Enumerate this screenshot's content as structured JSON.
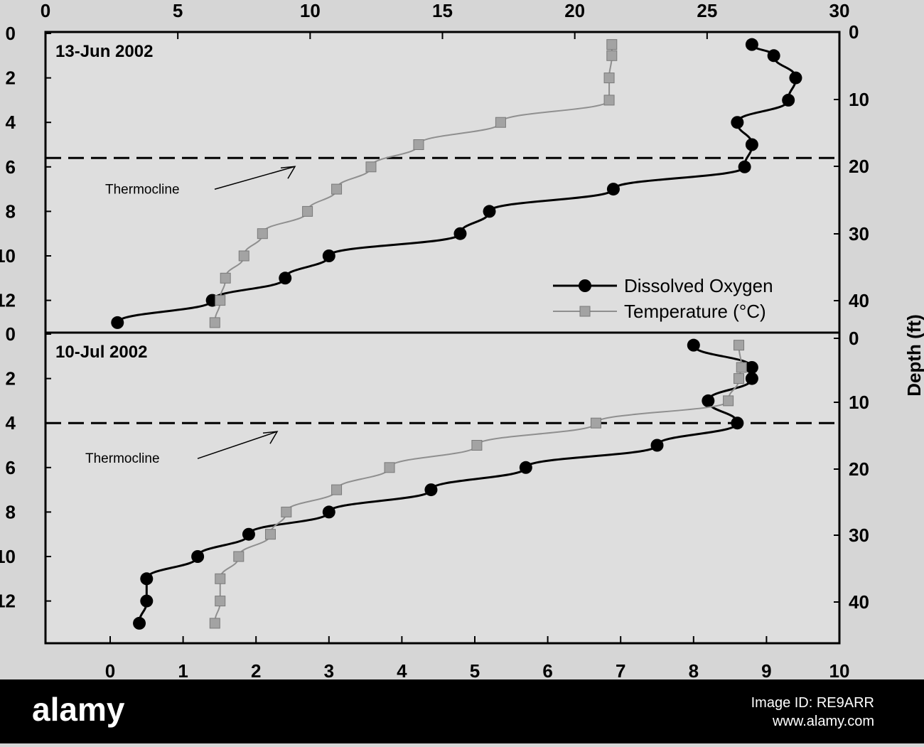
{
  "chart_data": {
    "type": "line",
    "y_axis_title": "Depth (ft)",
    "top_axis": {
      "label": "",
      "min": 0,
      "max": 30,
      "ticks": [
        "0",
        "5",
        "10",
        "15",
        "20",
        "25",
        "30"
      ]
    },
    "bottom_axis": {
      "label": "",
      "min": 0,
      "max": 10,
      "ticks": [
        "0",
        "1",
        "2",
        "3",
        "4",
        "5",
        "6",
        "7",
        "8",
        "9",
        "10"
      ]
    },
    "left_axis": {
      "unit": "m",
      "min": 0,
      "max": 13.5,
      "ticks": [
        "0",
        "2",
        "4",
        "6",
        "8",
        "10",
        "12"
      ]
    },
    "right_axis": {
      "unit": "ft",
      "ticks": [
        "0",
        "10",
        "20",
        "30",
        "40"
      ]
    },
    "legend": {
      "placement": "right, lower part of top panel",
      "items": [
        {
          "name": "Dissolved Oxygen",
          "marker": "circle",
          "color": "#000000"
        },
        {
          "name": "Temperature (°C)",
          "marker": "square",
          "color": "#999999"
        }
      ]
    },
    "panels": [
      {
        "title": "13-Jun 2002",
        "thermocline_depth": 5.6,
        "thermocline_label": "Thermocline",
        "series": [
          {
            "name": "Dissolved Oxygen",
            "x_axis": "bottom",
            "points": [
              {
                "x": 0.1,
                "y": 13
              },
              {
                "x": 1.4,
                "y": 12
              },
              {
                "x": 2.4,
                "y": 11
              },
              {
                "x": 3.0,
                "y": 10
              },
              {
                "x": 4.8,
                "y": 9
              },
              {
                "x": 5.2,
                "y": 8
              },
              {
                "x": 6.9,
                "y": 7
              },
              {
                "x": 8.7,
                "y": 6
              },
              {
                "x": 8.8,
                "y": 5
              },
              {
                "x": 8.6,
                "y": 4
              },
              {
                "x": 9.3,
                "y": 3
              },
              {
                "x": 9.4,
                "y": 2
              },
              {
                "x": 9.1,
                "y": 1
              },
              {
                "x": 8.8,
                "y": 0.5
              }
            ]
          },
          {
            "name": "Temperature (°C)",
            "x_axis": "top",
            "points": [
              {
                "x": 21.4,
                "y": 0.5
              },
              {
                "x": 21.4,
                "y": 1
              },
              {
                "x": 21.3,
                "y": 2
              },
              {
                "x": 21.3,
                "y": 3
              },
              {
                "x": 17.2,
                "y": 4
              },
              {
                "x": 14.1,
                "y": 5
              },
              {
                "x": 12.3,
                "y": 6
              },
              {
                "x": 11.0,
                "y": 7
              },
              {
                "x": 9.9,
                "y": 8
              },
              {
                "x": 8.2,
                "y": 9
              },
              {
                "x": 7.5,
                "y": 10
              },
              {
                "x": 6.8,
                "y": 11
              },
              {
                "x": 6.6,
                "y": 12
              },
              {
                "x": 6.4,
                "y": 13
              }
            ]
          }
        ]
      },
      {
        "title": "10-Jul 2002",
        "thermocline_depth": 4.0,
        "thermocline_label": "Thermocline",
        "series": [
          {
            "name": "Dissolved Oxygen",
            "x_axis": "bottom",
            "points": [
              {
                "x": 0.4,
                "y": 13
              },
              {
                "x": 0.5,
                "y": 12
              },
              {
                "x": 0.5,
                "y": 11
              },
              {
                "x": 1.2,
                "y": 10
              },
              {
                "x": 1.9,
                "y": 9
              },
              {
                "x": 3.0,
                "y": 8
              },
              {
                "x": 4.4,
                "y": 7
              },
              {
                "x": 5.7,
                "y": 6
              },
              {
                "x": 7.5,
                "y": 5
              },
              {
                "x": 8.6,
                "y": 4
              },
              {
                "x": 8.2,
                "y": 3
              },
              {
                "x": 8.8,
                "y": 2
              },
              {
                "x": 8.8,
                "y": 1.5
              },
              {
                "x": 8.0,
                "y": 0.5
              }
            ]
          },
          {
            "name": "Temperature (°C)",
            "x_axis": "top",
            "points": [
              {
                "x": 6.4,
                "y": 13
              },
              {
                "x": 6.6,
                "y": 12
              },
              {
                "x": 6.6,
                "y": 11
              },
              {
                "x": 7.3,
                "y": 10
              },
              {
                "x": 8.5,
                "y": 9
              },
              {
                "x": 9.1,
                "y": 8
              },
              {
                "x": 11.0,
                "y": 7
              },
              {
                "x": 13.0,
                "y": 6
              },
              {
                "x": 16.3,
                "y": 5
              },
              {
                "x": 20.8,
                "y": 4
              },
              {
                "x": 25.8,
                "y": 3
              },
              {
                "x": 26.2,
                "y": 2
              },
              {
                "x": 26.3,
                "y": 1.5
              },
              {
                "x": 26.2,
                "y": 0.5
              }
            ]
          }
        ]
      }
    ]
  },
  "watermark": {
    "brand": "alamy",
    "image_id": "Image ID: RE9ARR",
    "site": "www.alamy.com"
  }
}
